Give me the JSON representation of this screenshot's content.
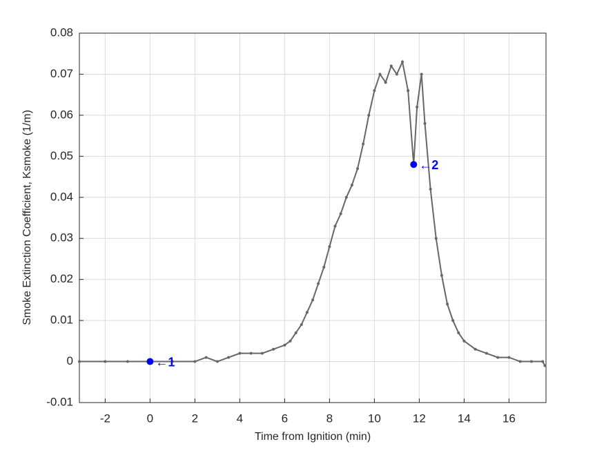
{
  "chart_data": {
    "type": "line",
    "xlabel": "Time from Ignition (min)",
    "ylabel": "Smoke Extinction Coefficient, Ksmoke (1/m)",
    "xlim": [
      -3.15,
      17.65
    ],
    "ylim": [
      -0.01,
      0.08
    ],
    "xticks": [
      -2,
      0,
      2,
      4,
      6,
      8,
      10,
      12,
      14,
      16
    ],
    "yticks": [
      -0.01,
      0,
      0.01,
      0.02,
      0.03,
      0.04,
      0.05,
      0.06,
      0.07,
      0.08
    ],
    "grid": true,
    "series": [
      {
        "color": "#666666",
        "x": [
          -3.15,
          -2,
          -1,
          0,
          1,
          2,
          2.5,
          3,
          3.5,
          4,
          4.5,
          5,
          5.5,
          6,
          6.25,
          6.5,
          6.75,
          7,
          7.25,
          7.5,
          7.75,
          8,
          8.25,
          8.5,
          8.75,
          9,
          9.25,
          9.5,
          9.75,
          10,
          10.25,
          10.5,
          10.75,
          11,
          11.25,
          11.5,
          11.75,
          11.9,
          12.1,
          12.25,
          12.5,
          12.75,
          13,
          13.25,
          13.5,
          13.75,
          14,
          14.5,
          15,
          15.5,
          16,
          16.5,
          17,
          17.5,
          17.6
        ],
        "values": [
          0,
          0,
          0,
          0,
          0,
          0,
          0.001,
          0,
          0.001,
          0.002,
          0.002,
          0.002,
          0.003,
          0.004,
          0.005,
          0.007,
          0.009,
          0.012,
          0.015,
          0.019,
          0.023,
          0.028,
          0.033,
          0.036,
          0.04,
          0.043,
          0.047,
          0.053,
          0.06,
          0.066,
          0.07,
          0.068,
          0.072,
          0.07,
          0.073,
          0.066,
          0.048,
          0.062,
          0.07,
          0.058,
          0.042,
          0.03,
          0.021,
          0.014,
          0.01,
          0.007,
          0.005,
          0.003,
          0.002,
          0.001,
          0.001,
          0,
          0,
          0,
          -0.001
        ]
      }
    ],
    "annotations": [
      {
        "x": 0,
        "y": 0,
        "label": "←1",
        "color": "#0000ff"
      },
      {
        "x": 11.75,
        "y": 0.048,
        "label": "←2",
        "color": "#0000ff"
      }
    ]
  }
}
